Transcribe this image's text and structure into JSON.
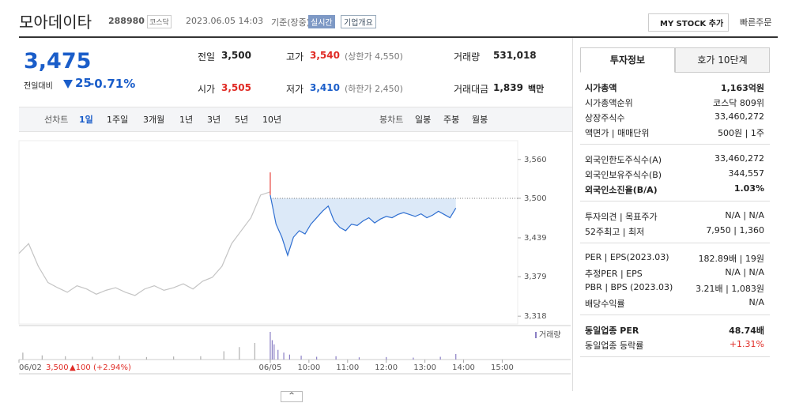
{
  "header": {
    "name": "모아데이타",
    "code": "288980",
    "market": "코스닥",
    "datetime": "2023.06.05 14:03",
    "basis": "기준(장중)",
    "realtime": "실시간",
    "company": "기업개요",
    "mystock": "MY STOCK 추가",
    "quick": "빠른주문"
  },
  "quote": {
    "price": "3,475",
    "change_label": "전일대비",
    "change": "25",
    "change_pct": "-0.71%"
  },
  "summary": [
    {
      "label": "전일",
      "value": "3,500"
    },
    {
      "label": "고가",
      "value": "3,540",
      "note": "(상한가 4,550)"
    },
    {
      "label": "거래량",
      "value": "531,018"
    },
    {
      "label": "시가",
      "value": "3,505"
    },
    {
      "label": "저가",
      "value": "3,410",
      "note": "(하한가 2,450)"
    },
    {
      "label": "거래대금",
      "value": "1,839",
      "note": "백만"
    }
  ],
  "tabs": {
    "line_label": "선차트",
    "periods": [
      "1일",
      "1주일",
      "3개월",
      "1년",
      "3년",
      "5년",
      "10년"
    ],
    "candle_label": "봉차트",
    "candles": [
      "일봉",
      "주봉",
      "월봉"
    ]
  },
  "chart_data": {
    "type": "line",
    "xlim": [
      -6.5,
      6.4
    ],
    "ylim": [
      3306,
      3589
    ],
    "xticks": [
      {
        "value": -6.5,
        "label": "06/02"
      },
      {
        "value": 0,
        "label": "06/05"
      },
      {
        "value": 1,
        "label": "10:00"
      },
      {
        "value": 2,
        "label": "11:00"
      },
      {
        "value": 3,
        "label": "12:00"
      },
      {
        "value": 4,
        "label": "13:00"
      },
      {
        "value": 5,
        "label": "14:00"
      },
      {
        "value": 6,
        "label": "15:00"
      }
    ],
    "yticks": [
      {
        "value": 3560,
        "label": "3,560"
      },
      {
        "value": 3500,
        "label": "3,500"
      },
      {
        "value": 3439,
        "label": "3,439"
      },
      {
        "value": 3379,
        "label": "3,379"
      },
      {
        "value": 3318,
        "label": "3,318"
      }
    ],
    "reference": 3500,
    "series": [
      {
        "color": "#c4c4c4",
        "x": [
          -6.5,
          -6.25,
          -6,
          -5.75,
          -5.5,
          -5.25,
          -5,
          -4.75,
          -4.5,
          -4.25,
          -4,
          -3.75,
          -3.5,
          -3.25,
          -3,
          -2.75,
          -2.5,
          -2.25,
          -2,
          -1.75,
          -1.5,
          -1.25,
          -1,
          -0.75,
          -0.5,
          -0.25,
          0
        ],
        "values": [
          3415,
          3430,
          3395,
          3370,
          3362,
          3355,
          3365,
          3360,
          3352,
          3358,
          3362,
          3355,
          3350,
          3360,
          3365,
          3358,
          3362,
          3368,
          3360,
          3372,
          3378,
          3395,
          3430,
          3450,
          3470,
          3505,
          3510
        ]
      },
      {
        "color": "#e8413b",
        "x": [
          0,
          0
        ],
        "values": [
          3540,
          3505
        ]
      },
      {
        "color": "#2f6fd1",
        "x": [
          0,
          0.15,
          0.3,
          0.45,
          0.6,
          0.75,
          0.9,
          1.05,
          1.2,
          1.35,
          1.5,
          1.65,
          1.8,
          1.95,
          2.1,
          2.25,
          2.4,
          2.55,
          2.7,
          2.85,
          3,
          3.15,
          3.3,
          3.45,
          3.6,
          3.75,
          3.9,
          4.05,
          4.2,
          4.35,
          4.5,
          4.65,
          4.8
        ],
        "values": [
          3505,
          3460,
          3440,
          3412,
          3440,
          3450,
          3445,
          3460,
          3470,
          3480,
          3488,
          3465,
          3455,
          3450,
          3460,
          3458,
          3465,
          3470,
          3462,
          3468,
          3472,
          3470,
          3475,
          3478,
          3475,
          3472,
          3476,
          3470,
          3474,
          3480,
          3475,
          3470,
          3485
        ]
      }
    ],
    "volume_label": "거래량",
    "volume_ylim": [
      0,
      100
    ],
    "volume": {
      "x": [
        -6.4,
        -5.9,
        -5.3,
        -4.6,
        -3.9,
        -3.2,
        -2.5,
        -1.8,
        -1.2,
        -0.8,
        -0.4,
        0,
        0.05,
        0.1,
        0.2,
        0.35,
        0.5,
        0.8,
        1.2,
        1.7,
        2.3,
        3,
        3.7,
        4.4,
        4.8
      ],
      "values": [
        25,
        15,
        12,
        10,
        14,
        9,
        11,
        12,
        30,
        45,
        60,
        100,
        70,
        55,
        35,
        25,
        18,
        14,
        10,
        12,
        8,
        9,
        7,
        10,
        20
      ]
    },
    "footer": {
      "date": "06/02",
      "price": "3,500",
      "change": "▲100 (+2.94%)"
    }
  },
  "info": {
    "tabs": [
      "투자정보",
      "호가 10단계"
    ],
    "groups": [
      [
        {
          "label": "시가총액",
          "value": "1,163억원",
          "bold": true
        },
        {
          "label": "시가총액순위",
          "value": "코스닥 809위"
        },
        {
          "label": "상장주식수",
          "value": "33,460,272"
        },
        {
          "label": "액면가 | 매매단위",
          "value": "500원 | 1주"
        }
      ],
      [
        {
          "label": "외국인한도주식수(A)",
          "value": "33,460,272"
        },
        {
          "label": "외국인보유주식수(B)",
          "value": "344,557"
        },
        {
          "label": "외국인소진율(B/A)",
          "value": "1.03%",
          "bold": true
        }
      ],
      [
        {
          "label": "투자의견 | 목표주가",
          "value": "N/A | N/A"
        },
        {
          "label": "52주최고 | 최저",
          "value": "7,950 | 1,360"
        }
      ],
      [
        {
          "label": "PER | EPS(2023.03)",
          "value": "182.89배 | 19원"
        },
        {
          "label": "추정PER | EPS",
          "value": "N/A | N/A"
        },
        {
          "label": "PBR | BPS (2023.03)",
          "value": "3.21배 | 1,083원"
        },
        {
          "label": "배당수익률",
          "value": "N/A"
        }
      ],
      [
        {
          "label": "동일업종 PER",
          "value": "48.74배",
          "bold": true
        },
        {
          "label": "동일업종 등락률",
          "value": "+1.31%",
          "red": true
        }
      ]
    ]
  }
}
